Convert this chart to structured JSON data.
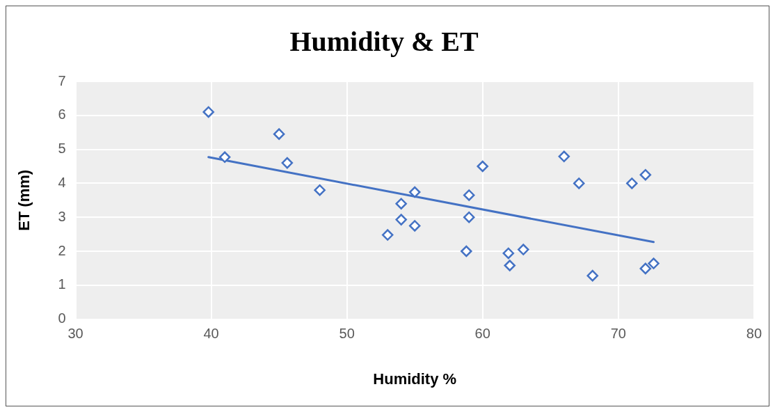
{
  "chart_data": {
    "type": "scatter",
    "title": "Humidity & ET",
    "xlabel": "Humidity %",
    "ylabel": "ET (mm)",
    "xlim": [
      30,
      80
    ],
    "xticks": [
      30,
      40,
      50,
      60,
      70,
      80
    ],
    "ylim": [
      0,
      7
    ],
    "yticks": [
      0,
      1,
      2,
      3,
      4,
      5,
      6,
      7
    ],
    "grid": true,
    "legend": false,
    "series": [
      {
        "type": "scatter",
        "color": "#4472c4",
        "marker": "diamond",
        "x": [
          39.8,
          41.0,
          45.0,
          45.6,
          48.0,
          53.0,
          54.0,
          54.0,
          55.0,
          55.0,
          58.8,
          59.0,
          59.0,
          60.0,
          61.9,
          62.0,
          63.0,
          66.0,
          67.1,
          68.1,
          71.0,
          72.0,
          72.0,
          72.6
        ],
        "values": [
          6.1,
          4.77,
          5.45,
          4.6,
          3.8,
          2.48,
          3.4,
          2.93,
          3.74,
          2.75,
          2.0,
          3.65,
          3.0,
          4.5,
          1.94,
          1.58,
          2.05,
          4.79,
          4.0,
          1.28,
          4.0,
          4.25,
          1.49,
          1.64
        ]
      },
      {
        "type": "line",
        "color": "#4472c4",
        "marker": "none",
        "line_style": "solid",
        "x": [
          39.8,
          72.6
        ],
        "values": [
          4.77,
          2.27
        ]
      }
    ]
  }
}
